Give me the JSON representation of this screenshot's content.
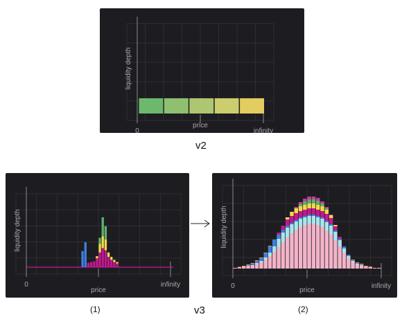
{
  "captions": {
    "v2": "v2",
    "v3": "v3",
    "panel1": "(1)",
    "panel2": "(2)"
  },
  "colors": {
    "panel_bg": "#1d1d21",
    "grid": "#34343a",
    "axis": "#8a8a90",
    "text": "#a8a8ae",
    "green": "#5fb06a",
    "yellow": "#f2d94a",
    "magenta": "#c2188f",
    "blue": "#3f7fe0",
    "cyan": "#a8e6ec",
    "pink": "#f2b3c8",
    "orange": "#ef8f3a",
    "baseline": "#c2188f"
  },
  "chart_data": [
    {
      "type": "bar",
      "id": "v2",
      "xlabel": "price",
      "ylabel": "liquidity depth",
      "tick_labels": [
        "0",
        "infinity"
      ],
      "grid": true,
      "segments": [
        {
          "value": 1,
          "color": "#6db86d"
        },
        {
          "value": 1,
          "color": "#8fc070"
        },
        {
          "value": 1,
          "color": "#aec672"
        },
        {
          "value": 1,
          "color": "#cccd6c"
        },
        {
          "value": 1,
          "color": "#e3cc60"
        }
      ],
      "ylim": [
        0,
        5
      ]
    },
    {
      "type": "bar",
      "id": "v3-1",
      "xlabel": "price",
      "ylabel": "liquidity depth",
      "tick_labels": [
        "0",
        "infinity"
      ],
      "grid": true,
      "stacked": true,
      "series": [
        {
          "name": "blue",
          "color": "#3f7fe0",
          "values": [
            0,
            0,
            0,
            0,
            0,
            0,
            0,
            0,
            0,
            0,
            0,
            0,
            0,
            0,
            0,
            0,
            0,
            0,
            0,
            2.2,
            3.4,
            0,
            0,
            0,
            0,
            0,
            0,
            0,
            0,
            0,
            0,
            0,
            0,
            0,
            0,
            0,
            0,
            0,
            0,
            0,
            0,
            0,
            0,
            0,
            0,
            0,
            0,
            0,
            0,
            0
          ]
        },
        {
          "name": "magenta",
          "color": "#c2188f",
          "values": [
            0,
            0,
            0,
            0,
            0,
            0,
            0,
            0,
            0,
            0,
            0,
            0,
            0,
            0,
            0,
            0,
            0,
            0,
            0,
            0,
            0,
            0.6,
            0.7,
            0.8,
            1.2,
            2.0,
            2.6,
            2.3,
            1.4,
            1.0,
            0.7,
            0.5,
            0,
            0,
            0,
            0,
            0,
            0,
            0,
            0,
            0,
            0,
            0,
            0,
            0,
            0,
            0,
            0,
            0,
            0
          ]
        },
        {
          "name": "yellow",
          "color": "#f2d94a",
          "values": [
            0,
            0,
            0,
            0,
            0,
            0,
            0,
            0,
            0,
            0,
            0,
            0,
            0,
            0,
            0,
            0,
            0,
            0,
            0,
            0,
            0,
            0,
            0,
            0,
            0.3,
            1.2,
            1.6,
            1.5,
            0.6,
            0.4,
            0.3,
            0.2,
            0,
            0,
            0,
            0,
            0,
            0,
            0,
            0,
            0,
            0,
            0,
            0,
            0,
            0,
            0,
            0,
            0,
            0
          ]
        },
        {
          "name": "green",
          "color": "#5fb06a",
          "values": [
            0,
            0,
            0,
            0,
            0,
            0,
            0,
            0,
            0,
            0,
            0,
            0,
            0,
            0,
            0,
            0,
            0,
            0,
            0,
            0,
            0,
            0,
            0,
            0,
            0,
            0.8,
            2.6,
            1.8,
            0,
            0,
            0,
            0,
            0,
            0,
            0,
            0,
            0,
            0,
            0,
            0,
            0,
            0,
            0,
            0,
            0,
            0,
            0,
            0,
            0,
            0
          ]
        }
      ],
      "ylim": [
        0,
        10
      ]
    },
    {
      "type": "bar",
      "id": "v3-2",
      "xlabel": "price",
      "ylabel": "liquidity depth",
      "tick_labels": [
        "0",
        "infinity"
      ],
      "grid": true,
      "stacked": true,
      "series": [
        {
          "name": "pink",
          "color": "#f2b3c8",
          "values": [
            0.1,
            0.2,
            0.3,
            0.4,
            0.5,
            0.7,
            0.9,
            1.3,
            1.8,
            2.4,
            3.1,
            3.8,
            4.5,
            5.1,
            5.6,
            6.0,
            6.3,
            6.5,
            6.5,
            6.3,
            6.0,
            5.5,
            4.9,
            4.1,
            3.2,
            2.3,
            1.5,
            0.9,
            0.6,
            0.4,
            0.3,
            0.2,
            0.1,
            0.1
          ]
        },
        {
          "name": "cyan",
          "color": "#a8e6ec",
          "values": [
            0,
            0,
            0,
            0,
            0,
            0.1,
            0.2,
            0.3,
            0.5,
            0.8,
            1.2,
            1.4,
            1.4,
            1.3,
            1.2,
            1.2,
            1.1,
            1.1,
            1.1,
            1.1,
            1.2,
            1.2,
            1.3,
            1.2,
            0.9,
            0.6,
            0.3,
            0.2,
            0.1,
            0.1,
            0,
            0,
            0,
            0
          ]
        },
        {
          "name": "blue",
          "color": "#3f7fe0",
          "values": [
            0,
            0,
            0,
            0.1,
            0.2,
            0.3,
            0.4,
            0.6,
            0.9,
            1.0,
            0.6,
            0.4,
            0.3,
            0.2,
            0.2,
            0.2,
            0.2,
            0.2,
            0.2,
            0.2,
            0.2,
            0.2,
            0.2,
            0.2,
            0.2,
            0.3,
            0.2,
            0.1,
            0.1,
            0.1,
            0,
            0,
            0,
            0
          ]
        },
        {
          "name": "orange",
          "color": "#ef8f3a",
          "values": [
            0,
            0.05,
            0.1,
            0.1,
            0.1,
            0.1,
            0.1,
            0.1,
            0.1,
            0,
            0,
            0,
            0,
            0,
            0,
            0,
            0,
            0,
            0,
            0,
            0,
            0,
            0,
            0,
            0,
            0,
            0,
            0.1,
            0.1,
            0.1,
            0.1,
            0.1,
            0,
            0
          ]
        },
        {
          "name": "magenta",
          "color": "#c2188f",
          "values": [
            0,
            0,
            0,
            0,
            0,
            0,
            0,
            0,
            0,
            0,
            0.3,
            0.6,
            0.9,
            1.0,
            1.0,
            0.9,
            0.9,
            0.9,
            0.9,
            0.9,
            0.9,
            1.0,
            0.9,
            0.6,
            0.3,
            0,
            0,
            0,
            0,
            0,
            0,
            0,
            0,
            0
          ]
        },
        {
          "name": "yellow",
          "color": "#f2d94a",
          "values": [
            0,
            0,
            0,
            0,
            0,
            0,
            0,
            0,
            0,
            0,
            0,
            0,
            0.3,
            0.6,
            0.7,
            0.7,
            0.7,
            0.7,
            0.7,
            0.7,
            0.7,
            0.6,
            0.4,
            0.2,
            0,
            0,
            0,
            0,
            0,
            0,
            0,
            0,
            0,
            0
          ]
        },
        {
          "name": "green",
          "color": "#5fb06a",
          "values": [
            0,
            0,
            0,
            0,
            0,
            0,
            0,
            0,
            0,
            0,
            0,
            0,
            0,
            0,
            0,
            0.3,
            0.5,
            0.6,
            0.6,
            0.6,
            0.4,
            0.2,
            0,
            0,
            0,
            0,
            0,
            0,
            0,
            0,
            0,
            0,
            0,
            0
          ]
        },
        {
          "name": "top",
          "color": "#cc3aa0",
          "values": [
            0,
            0,
            0,
            0,
            0,
            0,
            0,
            0,
            0,
            0,
            0,
            0,
            0,
            0,
            0.2,
            0.3,
            0.4,
            0.4,
            0.4,
            0.4,
            0.3,
            0.2,
            0.1,
            0,
            0,
            0,
            0,
            0,
            0,
            0,
            0,
            0,
            0,
            0
          ]
        }
      ],
      "ylim": [
        0,
        12
      ]
    }
  ]
}
